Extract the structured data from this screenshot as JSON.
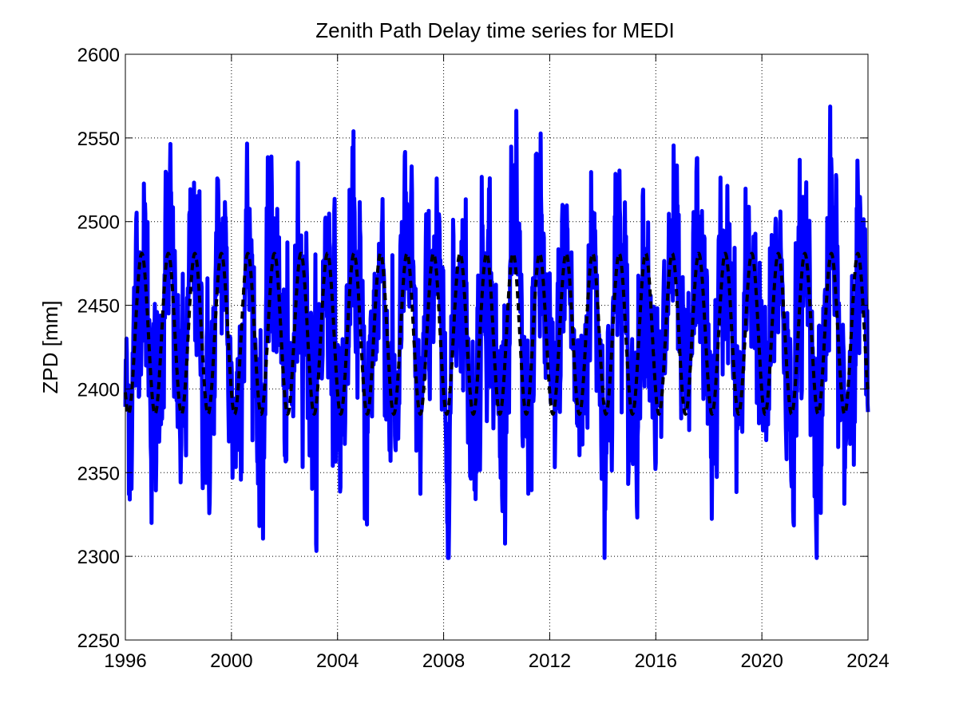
{
  "chart_data": {
    "type": "line",
    "title": "Zenith Path Delay time series for MEDI",
    "xlabel": "",
    "ylabel": "ZPD [mm]",
    "xlim": [
      1996,
      2024
    ],
    "ylim": [
      2250,
      2600
    ],
    "xticks": [
      1996,
      2000,
      2004,
      2008,
      2012,
      2016,
      2020,
      2024
    ],
    "xtick_labels": [
      "1996",
      "2000",
      "2004",
      "2008",
      "2012",
      "2016",
      "2020",
      "2024"
    ],
    "yticks": [
      2250,
      2300,
      2350,
      2400,
      2450,
      2500,
      2550,
      2600
    ],
    "ytick_labels": [
      "2250",
      "2300",
      "2350",
      "2400",
      "2450",
      "2500",
      "2550",
      "2600"
    ],
    "grid": true,
    "series": [
      {
        "style": "solid",
        "color": "#0000ff",
        "description_values": "daily ZPD observations, oscillating mostly between about 2330 and 2550 mm with annual cycle",
        "x_start": 1996,
        "x_end": 2024,
        "mean": 2433,
        "annual_amplitude": 48,
        "peak_phase_year_fraction": 0.62,
        "min_value": 2299,
        "max_value": 2578
      },
      {
        "style": "dashed",
        "color": "#000000",
        "x_start": 1996,
        "x_end": 2024,
        "mean": 2433,
        "annual_amplitude": 48,
        "semiannual_amplitude": 0,
        "peak_phase_year_fraction": 0.62,
        "min_value": 2385,
        "max_value": 2481
      }
    ]
  }
}
